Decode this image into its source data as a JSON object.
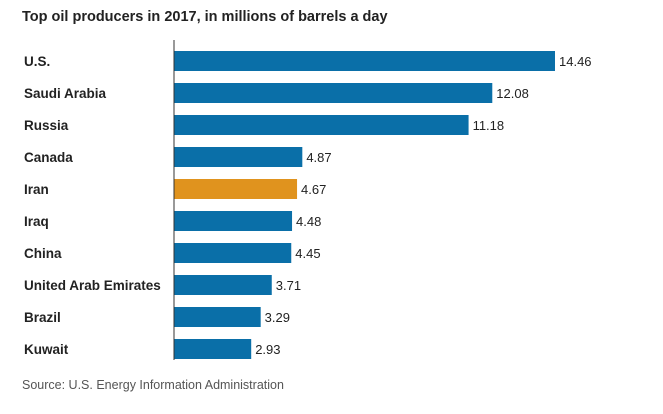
{
  "chart_data": {
    "type": "bar",
    "orientation": "horizontal",
    "title": "Top oil producers in 2017, in millions of barrels a day",
    "categories": [
      "U.S.",
      "Saudi Arabia",
      "Russia",
      "Canada",
      "Iran",
      "Iraq",
      "China",
      "United Arab Emirates",
      "Brazil",
      "Kuwait"
    ],
    "values": [
      14.46,
      12.08,
      11.18,
      4.87,
      4.67,
      4.48,
      4.45,
      3.71,
      3.29,
      2.93
    ],
    "value_labels": [
      "14.46",
      "12.08",
      "11.18",
      "4.87",
      "4.67",
      "4.48",
      "4.45",
      "3.71",
      "3.29",
      "2.93"
    ],
    "highlight": "Iran",
    "xlim": [
      0,
      14.46
    ],
    "grid": false,
    "source": "Source: U.S. Energy Information Administration"
  },
  "colors": {
    "bar": "#0a6fa8",
    "highlight": "#e0931e",
    "axis": "#333333",
    "text": "#222222"
  }
}
